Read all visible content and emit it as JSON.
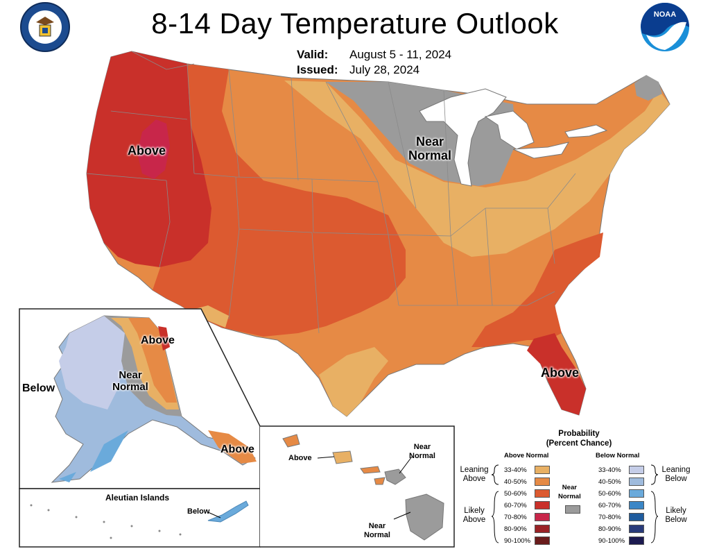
{
  "header": {
    "title": "8-14 Day Temperature Outlook",
    "valid_label": "Valid:",
    "valid_value": "August 5 - 11, 2024",
    "issued_label": "Issued:",
    "issued_value": "July 28, 2024"
  },
  "logos": {
    "left": "department-of-commerce-seal",
    "right": "noaa-logo"
  },
  "map_labels": {
    "west": "Above",
    "great_lakes_1": "Near",
    "great_lakes_2": "Normal",
    "florida": "Above",
    "alaska_north": "Above",
    "alaska_near_1": "Near",
    "alaska_near_2": "Normal",
    "alaska_west": "Below",
    "alaska_southeast": "Above",
    "aleutian_title": "Aleutian Islands",
    "aleutian_below": "Below",
    "hawaii_above": "Above",
    "hawaii_near_top_1": "Near",
    "hawaii_near_top_2": "Normal",
    "hawaii_near_bottom_1": "Near",
    "hawaii_near_bottom_2": "Normal"
  },
  "legend": {
    "title_1": "Probability",
    "title_2": "(Percent Chance)",
    "above_header": "Above Normal",
    "below_header": "Below Normal",
    "near_header_1": "Near",
    "near_header_2": "Normal",
    "leaning_above_1": "Leaning",
    "leaning_above_2": "Above",
    "likely_above_1": "Likely",
    "likely_above_2": "Above",
    "leaning_below_1": "Leaning",
    "leaning_below_2": "Below",
    "likely_below_1": "Likely",
    "likely_below_2": "Below",
    "above": [
      {
        "range": "33-40%",
        "color": "#e8b064"
      },
      {
        "range": "40-50%",
        "color": "#e68a45"
      },
      {
        "range": "50-60%",
        "color": "#dc5a30"
      },
      {
        "range": "60-70%",
        "color": "#c9302a"
      },
      {
        "range": "70-80%",
        "color": "#c8264a"
      },
      {
        "range": "80-90%",
        "color": "#9a2226"
      },
      {
        "range": "90-100%",
        "color": "#6a1c1c"
      }
    ],
    "below": [
      {
        "range": "33-40%",
        "color": "#c5cde8"
      },
      {
        "range": "40-50%",
        "color": "#9fbbdd"
      },
      {
        "range": "50-60%",
        "color": "#6aaadb"
      },
      {
        "range": "60-70%",
        "color": "#3a86c6"
      },
      {
        "range": "70-80%",
        "color": "#1f5c9e"
      },
      {
        "range": "80-90%",
        "color": "#283a7a"
      },
      {
        "range": "90-100%",
        "color": "#1c1a50"
      }
    ],
    "near_color": "#9b9b9b"
  }
}
